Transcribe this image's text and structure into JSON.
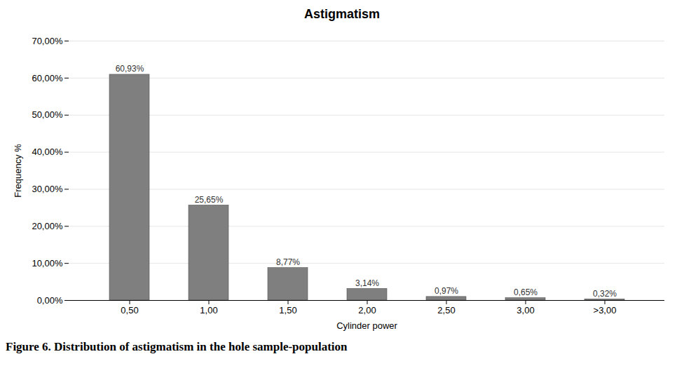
{
  "chart_data": {
    "type": "bar",
    "title": "Astigmatism",
    "xlabel": "Cylinder power",
    "ylabel": "Frequency %",
    "categories": [
      "0,50",
      "1,00",
      "1,50",
      "2,00",
      "2,50",
      "3,00",
      ">3,00"
    ],
    "values": [
      60.93,
      25.65,
      8.77,
      3.14,
      0.97,
      0.65,
      0.32
    ],
    "value_labels": [
      "60,93%",
      "25,65%",
      "8,77%",
      "3,14%",
      "0,97%",
      "0,65%",
      "0,32%"
    ],
    "color": "#7f7f7f",
    "ylim": [
      0,
      70
    ],
    "yticks": [
      {
        "value": 0,
        "label": "0,00%"
      },
      {
        "value": 10,
        "label": "10,00%"
      },
      {
        "value": 20,
        "label": "20,00%"
      },
      {
        "value": 30,
        "label": "30,00%"
      },
      {
        "value": 40,
        "label": "40,00%"
      },
      {
        "value": 50,
        "label": "50,00%"
      },
      {
        "value": 60,
        "label": "60,00%"
      },
      {
        "value": 70,
        "label": "70,00%"
      }
    ],
    "grid": true,
    "data_labels": true,
    "caption": "Figure 6. Distribution of astigmatism in the hole sample-population"
  }
}
